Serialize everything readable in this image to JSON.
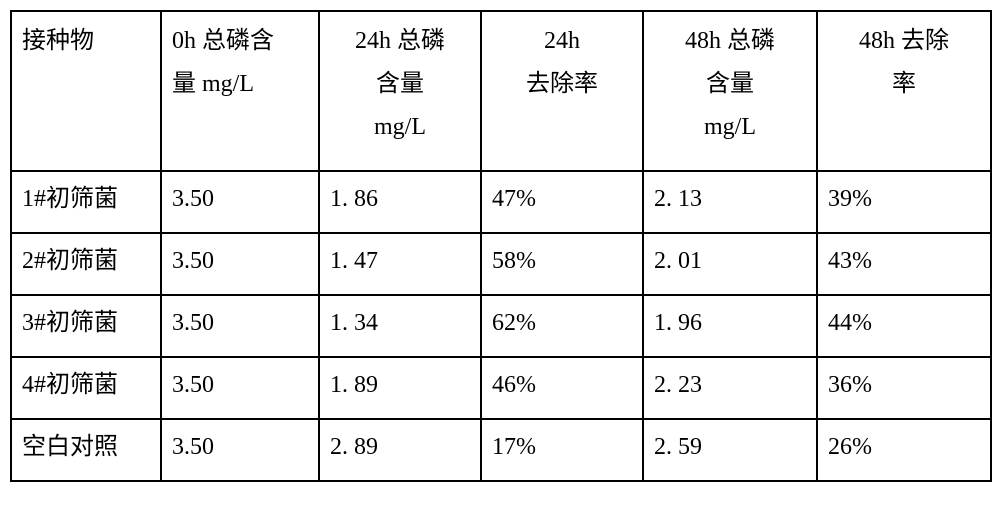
{
  "table": {
    "type": "table",
    "background_color": "#ffffff",
    "border_color": "#000000",
    "border_width": 2,
    "font_family": "SimSun",
    "font_size": 24,
    "columns": [
      {
        "key": "inoculum",
        "lines": [
          "接种物"
        ],
        "width": 150,
        "align": "left"
      },
      {
        "key": "p_0h",
        "lines": [
          "0h 总磷含",
          "量 mg/L"
        ],
        "width": 158,
        "align": "left"
      },
      {
        "key": "p_24h",
        "lines": [
          "24h 总磷",
          "含量",
          "mg/L"
        ],
        "width": 162,
        "align": "center"
      },
      {
        "key": "r_24h",
        "lines": [
          "24h",
          "去除率"
        ],
        "width": 162,
        "align": "center"
      },
      {
        "key": "p_48h",
        "lines": [
          "48h 总磷",
          "含量",
          "mg/L"
        ],
        "width": 174,
        "align": "center"
      },
      {
        "key": "r_48h",
        "lines": [
          "48h 去除",
          "率"
        ],
        "width": 174,
        "align": "center"
      }
    ],
    "rows": [
      {
        "inoculum": "1#初筛菌",
        "p_0h": "3.50",
        "p_24h": "1. 86",
        "r_24h": "47%",
        "p_48h": "2. 13",
        "r_48h": "39%"
      },
      {
        "inoculum": "2#初筛菌",
        "p_0h": "3.50",
        "p_24h": "1. 47",
        "r_24h": "58%",
        "p_48h": "2. 01",
        "r_48h": "43%"
      },
      {
        "inoculum": "3#初筛菌",
        "p_0h": "3.50",
        "p_24h": "1. 34",
        "r_24h": "62%",
        "p_48h": "1. 96",
        "r_48h": "44%"
      },
      {
        "inoculum": "4#初筛菌",
        "p_0h": "3.50",
        "p_24h": "1. 89",
        "r_24h": "46%",
        "p_48h": "2. 23",
        "r_48h": "36%"
      },
      {
        "inoculum": "空白对照",
        "p_0h": "3.50",
        "p_24h": "2. 89",
        "r_24h": "17%",
        "p_48h": "2. 59",
        "r_48h": "26%"
      }
    ]
  }
}
